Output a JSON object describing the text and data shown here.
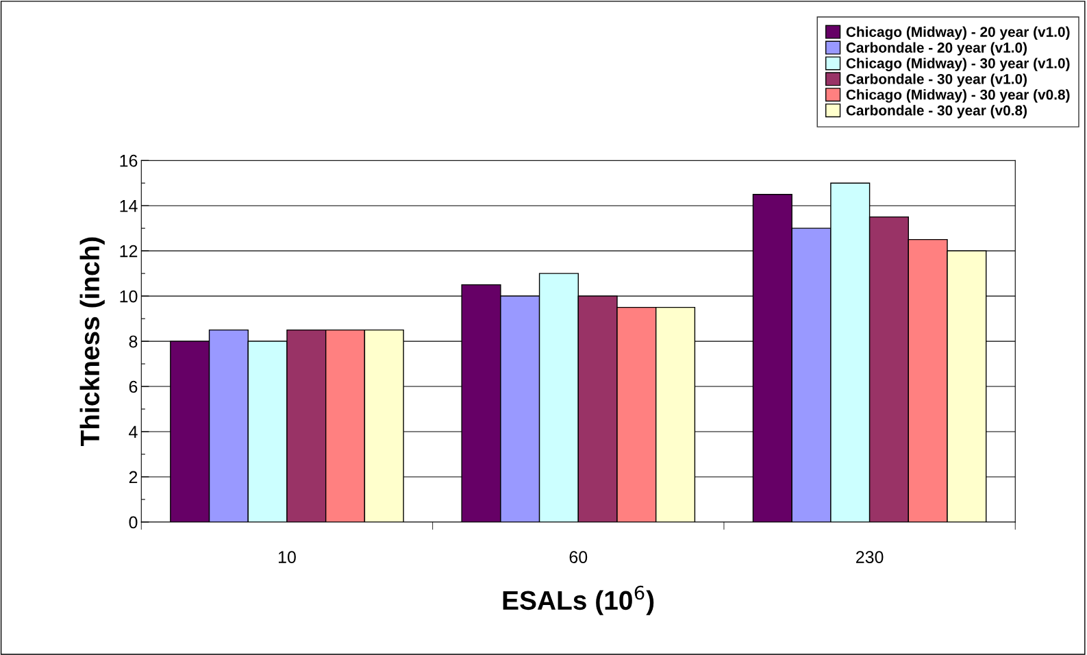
{
  "chart_data": {
    "type": "bar",
    "xlabel": "ESALs (10$^{6}$)",
    "ylabel": "Thickness (inch)",
    "categories": [
      "10",
      "60",
      "230"
    ],
    "series": [
      {
        "name": "Chicago (Midway) - 20 year (v1.0)",
        "color": "#660066",
        "values": [
          8,
          10.5,
          14.5
        ]
      },
      {
        "name": "Carbondale - 20 year (v1.0)",
        "color": "#9999ff",
        "values": [
          8.5,
          10,
          13
        ]
      },
      {
        "name": "Chicago (Midway) - 30 year (v1.0)",
        "color": "#ccffff",
        "values": [
          8,
          11,
          15
        ]
      },
      {
        "name": "Carbondale - 30 year (v1.0)",
        "color": "#993366",
        "values": [
          8.5,
          10,
          13.5
        ]
      },
      {
        "name": "Chicago (Midway) - 30 year (v0.8)",
        "color": "#ff8080",
        "values": [
          8.5,
          9.5,
          12.5
        ]
      },
      {
        "name": "Carbondale - 30 year (v0.8)",
        "color": "#ffffcc",
        "values": [
          8.5,
          9.5,
          12
        ]
      }
    ],
    "ylim": [
      0,
      16
    ],
    "yticks": [
      0,
      {
        "value": 1,
        "label": null
      },
      2,
      {
        "value": 3,
        "label": null
      },
      4,
      {
        "value": 5,
        "label": null
      },
      6,
      {
        "value": 7,
        "label": null
      },
      8,
      {
        "value": 9,
        "label": null
      },
      10,
      {
        "value": 11,
        "label": null
      },
      12,
      {
        "value": 13,
        "label": null
      },
      14,
      {
        "value": 15,
        "label": null
      },
      16
    ],
    "grid": "y",
    "legend": "top right"
  }
}
